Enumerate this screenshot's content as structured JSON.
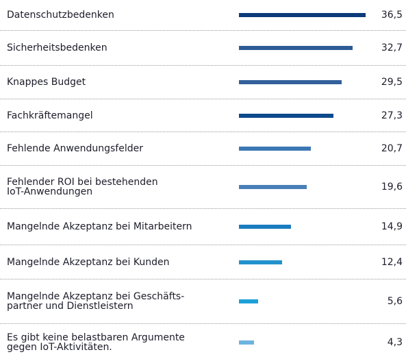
{
  "chart_data": {
    "type": "bar",
    "categories": [
      "Datenschutzbedenken",
      "Sicherheitsbedenken",
      "Knappes Budget",
      "Fachkräftemangel",
      "Fehlende Anwendungsfelder",
      "Fehlender ROI bei bestehenden\nIoT-Anwendungen",
      "Mangelnde Akzeptanz bei Mitarbeitern",
      "Mangelnde Akzeptanz bei Kunden",
      "Mangelnde Akzeptanz bei Geschäfts-\npartner und Dienstleistern",
      "Es gibt keine belastbaren Argumente\ngegen IoT-Aktivitäten."
    ],
    "values": [
      36.5,
      32.7,
      29.5,
      27.3,
      20.7,
      19.6,
      14.9,
      12.4,
      5.6,
      4.3
    ],
    "value_labels": [
      "36,5",
      "32,7",
      "29,5",
      "27,3",
      "20,7",
      "19,6",
      "14,9",
      "12,4",
      "5,6",
      "4,3"
    ],
    "colors": [
      "#0d3a7a",
      "#2c5b96",
      "#33609a",
      "#0c4a8c",
      "#3d77b5",
      "#4a7fb8",
      "#1a7cc0",
      "#2292cc",
      "#1ea0d8",
      "#6cb4e0"
    ]
  }
}
